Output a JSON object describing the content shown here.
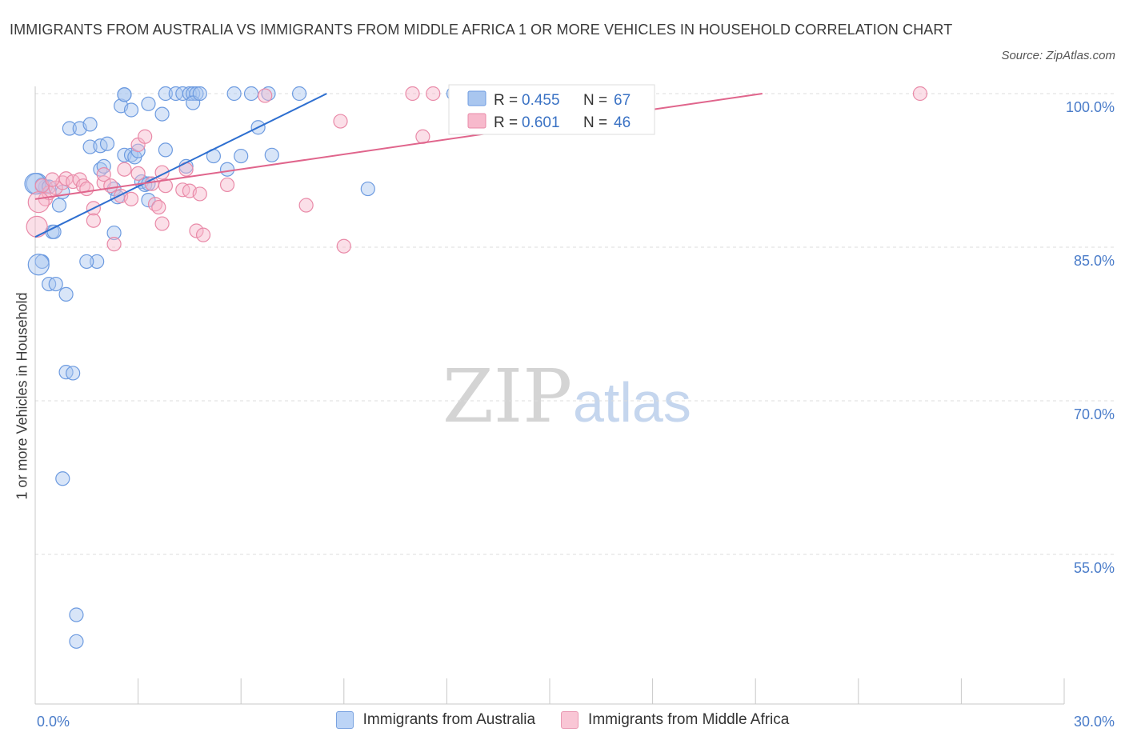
{
  "title": "IMMIGRANTS FROM AUSTRALIA VS IMMIGRANTS FROM MIDDLE AFRICA 1 OR MORE VEHICLES IN HOUSEHOLD CORRELATION CHART",
  "source": "Source: ZipAtlas.com",
  "watermark": {
    "zip": "ZIP",
    "atlas": "atlas"
  },
  "legend_box": {
    "rows": [
      {
        "r_label": "R =",
        "r_value": "0.455",
        "n_label": "N =",
        "n_value": "67",
        "color": "#a9c6ef",
        "stroke": "#6d9be0"
      },
      {
        "r_label": "R =",
        "r_value": "0.601",
        "n_label": "N =",
        "n_value": "46",
        "color": "#f7b9cc",
        "stroke": "#e98aa8"
      }
    ]
  },
  "bottom_legend": [
    {
      "label": "Immigrants from Australia",
      "color": "#bcd4f6",
      "stroke": "#7aa3e0"
    },
    {
      "label": "Immigrants from Middle Africa",
      "color": "#f9c6d5",
      "stroke": "#e99ab3"
    }
  ],
  "chart_data": {
    "type": "scatter",
    "title": "IMMIGRANTS FROM AUSTRALIA VS IMMIGRANTS FROM MIDDLE AFRICA 1 OR MORE VEHICLES IN HOUSEHOLD CORRELATION CHART",
    "xlabel": "",
    "ylabel": "1 or more Vehicles in Household",
    "xlim": [
      0,
      30
    ],
    "ylim": [
      40,
      100
    ],
    "x_tick_labels": [
      "0.0%",
      "30.0%"
    ],
    "y_tick_labels": [
      "100.0%",
      "85.0%",
      "70.0%",
      "55.0%"
    ],
    "y_ticks": [
      100,
      85,
      70,
      55
    ],
    "series": [
      {
        "name": "Immigrants from Australia",
        "color": "#6d9be0",
        "fill": "#a9c6ef",
        "trend": {
          "x": [
            0.0,
            8.5
          ],
          "y": [
            86.0,
            100.0
          ],
          "color": "#2e6fd0"
        },
        "points": [
          [
            0.05,
            91.2
          ],
          [
            0.2,
            83.6
          ],
          [
            0.1,
            83.3
          ],
          [
            0.3,
            90.9
          ],
          [
            0.5,
            86.5
          ],
          [
            0.55,
            86.5
          ],
          [
            0.4,
            81.4
          ],
          [
            0.6,
            81.4
          ],
          [
            0.9,
            80.4
          ],
          [
            0.7,
            89.1
          ],
          [
            0.8,
            90.4
          ],
          [
            1.0,
            96.6
          ],
          [
            1.3,
            96.6
          ],
          [
            1.6,
            97.0
          ],
          [
            1.6,
            94.8
          ],
          [
            1.9,
            94.9
          ],
          [
            2.1,
            95.1
          ],
          [
            1.9,
            92.6
          ],
          [
            2.0,
            92.9
          ],
          [
            2.3,
            90.7
          ],
          [
            2.3,
            86.4
          ],
          [
            2.4,
            89.9
          ],
          [
            2.5,
            98.8
          ],
          [
            2.6,
            99.9
          ],
          [
            2.6,
            94.0
          ],
          [
            2.8,
            94.0
          ],
          [
            2.8,
            98.4
          ],
          [
            2.6,
            99.9
          ],
          [
            2.9,
            93.8
          ],
          [
            3.0,
            94.4
          ],
          [
            3.1,
            91.4
          ],
          [
            3.2,
            91.1
          ],
          [
            3.3,
            91.2
          ],
          [
            3.3,
            89.6
          ],
          [
            3.3,
            99.0
          ],
          [
            3.7,
            98.0
          ],
          [
            3.8,
            100.0
          ],
          [
            3.8,
            94.5
          ],
          [
            4.1,
            100.0
          ],
          [
            4.3,
            100.0
          ],
          [
            4.4,
            92.9
          ],
          [
            4.5,
            100.0
          ],
          [
            4.6,
            100.0
          ],
          [
            4.7,
            100.0
          ],
          [
            4.6,
            99.1
          ],
          [
            4.8,
            100.0
          ],
          [
            5.2,
            93.9
          ],
          [
            5.6,
            92.6
          ],
          [
            5.8,
            100.0
          ],
          [
            6.3,
            100.0
          ],
          [
            6.0,
            93.9
          ],
          [
            6.5,
            96.7
          ],
          [
            6.8,
            100.0
          ],
          [
            6.9,
            94.0
          ],
          [
            7.7,
            100.0
          ],
          [
            9.7,
            90.7
          ],
          [
            12.2,
            100.0
          ],
          [
            0.9,
            72.8
          ],
          [
            1.1,
            72.7
          ],
          [
            0.8,
            62.4
          ],
          [
            1.2,
            49.1
          ],
          [
            1.2,
            46.5
          ],
          [
            1.8,
            83.6
          ],
          [
            1.5,
            83.6
          ],
          [
            0.2,
            91.1
          ],
          [
            0.0,
            91.2
          ],
          [
            0.4,
            90.9
          ]
        ]
      },
      {
        "name": "Immigrants from Middle Africa",
        "color": "#e98aa8",
        "fill": "#f7b9cc",
        "trend": {
          "x": [
            0.0,
            21.2
          ],
          "y": [
            89.7,
            100.0
          ],
          "color": "#e0658c"
        },
        "points": [
          [
            0.05,
            87.0
          ],
          [
            0.3,
            89.7
          ],
          [
            0.4,
            90.3
          ],
          [
            0.6,
            90.8
          ],
          [
            0.8,
            91.3
          ],
          [
            0.9,
            91.7
          ],
          [
            1.1,
            91.4
          ],
          [
            1.3,
            91.6
          ],
          [
            1.4,
            91.0
          ],
          [
            1.5,
            90.7
          ],
          [
            1.7,
            88.8
          ],
          [
            1.7,
            87.6
          ],
          [
            2.0,
            91.3
          ],
          [
            2.0,
            92.1
          ],
          [
            2.2,
            91.0
          ],
          [
            2.3,
            85.3
          ],
          [
            2.5,
            90.0
          ],
          [
            2.6,
            92.6
          ],
          [
            2.8,
            89.7
          ],
          [
            3.0,
            92.2
          ],
          [
            3.0,
            95.0
          ],
          [
            3.2,
            95.8
          ],
          [
            3.4,
            91.2
          ],
          [
            3.5,
            89.2
          ],
          [
            3.7,
            92.3
          ],
          [
            3.6,
            88.9
          ],
          [
            3.7,
            87.3
          ],
          [
            3.8,
            91.0
          ],
          [
            4.3,
            90.6
          ],
          [
            4.4,
            92.6
          ],
          [
            4.5,
            90.5
          ],
          [
            4.7,
            86.6
          ],
          [
            4.8,
            90.2
          ],
          [
            4.9,
            86.2
          ],
          [
            5.6,
            91.1
          ],
          [
            6.7,
            99.8
          ],
          [
            7.9,
            89.1
          ],
          [
            8.9,
            97.3
          ],
          [
            9.0,
            85.1
          ],
          [
            11.0,
            100.0
          ],
          [
            11.3,
            95.8
          ],
          [
            11.6,
            100.0
          ],
          [
            25.8,
            100.0
          ],
          [
            0.2,
            91.0
          ],
          [
            0.5,
            91.6
          ],
          [
            0.1,
            89.4
          ]
        ]
      }
    ]
  }
}
